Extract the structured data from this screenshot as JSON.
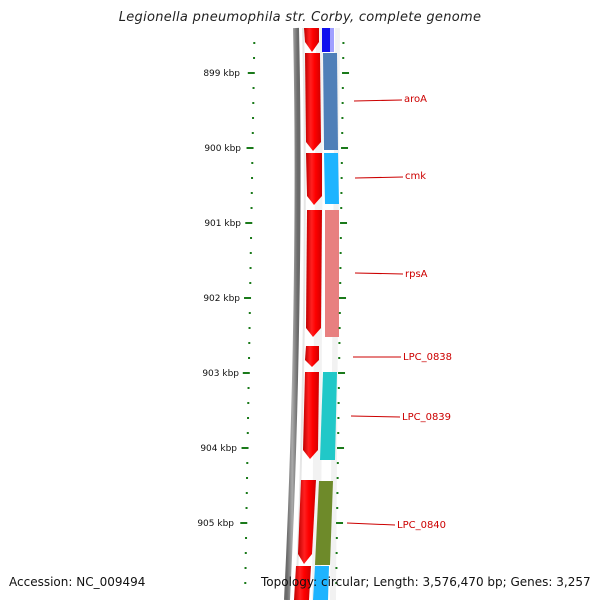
{
  "title": "Legionella pneumophila str. Corby, complete genome",
  "accession": "Accession: NC_009494",
  "topology": "Topology: circular; Length: 3,576,470 bp; Genes: 3,257",
  "scale_labels": [
    "899 kbp",
    "900 kbp",
    "901 kbp",
    "902 kbp",
    "903 kbp",
    "904 kbp",
    "905 kbp"
  ],
  "gene_labels": [
    "aroA",
    "cmk",
    "rpsA",
    "LPC_0838",
    "LPC_0839",
    "LPC_0840"
  ],
  "colors": {
    "tick": "#1a7a1a",
    "cds": "#ff0000",
    "label": "#cc0000",
    "backbone": "#808080",
    "cog_aroA": "#4f7fb8",
    "cog_cmk": "#1eb4ff",
    "cog_rpsA": "#e88080",
    "cog_0839": "#21c8c8",
    "cog_0840": "#6e8a2a",
    "cog_top": "#1010ee"
  }
}
